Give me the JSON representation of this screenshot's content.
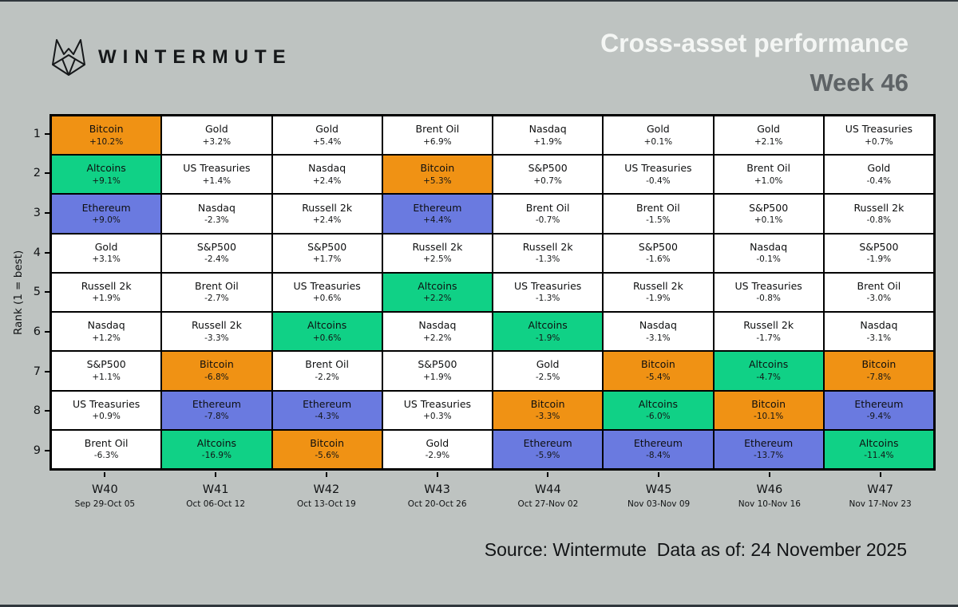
{
  "header": {
    "brand": "WINTERMUTE",
    "title": "Cross-asset performance",
    "subtitle": "Week 46"
  },
  "footer": {
    "text": "Source: Wintermute  Data as of: 24 November 2025"
  },
  "chart_data": {
    "type": "heatmap",
    "title": "Cross-asset performance Week 46",
    "ylabel": "Rank (1 = best)",
    "xlabel": "",
    "legend_position": "none",
    "grid": true,
    "ranks": [
      "1",
      "2",
      "3",
      "4",
      "5",
      "6",
      "7",
      "8",
      "9"
    ],
    "asset_colors": {
      "Bitcoin": "#F09214",
      "Altcoins": "#10D186",
      "Ethereum": "#6A7AE0",
      "default": "#FFFFFF"
    },
    "weeks": [
      {
        "label": "W40",
        "dates": "Sep 29-Oct 05",
        "ranking": [
          {
            "asset": "Bitcoin",
            "change": "+10.2%"
          },
          {
            "asset": "Altcoins",
            "change": "+9.1%"
          },
          {
            "asset": "Ethereum",
            "change": "+9.0%"
          },
          {
            "asset": "Gold",
            "change": "+3.1%"
          },
          {
            "asset": "Russell 2k",
            "change": "+1.9%"
          },
          {
            "asset": "Nasdaq",
            "change": "+1.2%"
          },
          {
            "asset": "S&P500",
            "change": "+1.1%"
          },
          {
            "asset": "US Treasuries",
            "change": "+0.9%"
          },
          {
            "asset": "Brent Oil",
            "change": "-6.3%"
          }
        ]
      },
      {
        "label": "W41",
        "dates": "Oct 06-Oct 12",
        "ranking": [
          {
            "asset": "Gold",
            "change": "+3.2%"
          },
          {
            "asset": "US Treasuries",
            "change": "+1.4%"
          },
          {
            "asset": "Nasdaq",
            "change": "-2.3%"
          },
          {
            "asset": "S&P500",
            "change": "-2.4%"
          },
          {
            "asset": "Brent Oil",
            "change": "-2.7%"
          },
          {
            "asset": "Russell 2k",
            "change": "-3.3%"
          },
          {
            "asset": "Bitcoin",
            "change": "-6.8%"
          },
          {
            "asset": "Ethereum",
            "change": "-7.8%"
          },
          {
            "asset": "Altcoins",
            "change": "-16.9%"
          }
        ]
      },
      {
        "label": "W42",
        "dates": "Oct 13-Oct 19",
        "ranking": [
          {
            "asset": "Gold",
            "change": "+5.4%"
          },
          {
            "asset": "Nasdaq",
            "change": "+2.4%"
          },
          {
            "asset": "Russell 2k",
            "change": "+2.4%"
          },
          {
            "asset": "S&P500",
            "change": "+1.7%"
          },
          {
            "asset": "US Treasuries",
            "change": "+0.6%"
          },
          {
            "asset": "Altcoins",
            "change": "+0.6%"
          },
          {
            "asset": "Brent Oil",
            "change": "-2.2%"
          },
          {
            "asset": "Ethereum",
            "change": "-4.3%"
          },
          {
            "asset": "Bitcoin",
            "change": "-5.6%"
          }
        ]
      },
      {
        "label": "W43",
        "dates": "Oct 20-Oct 26",
        "ranking": [
          {
            "asset": "Brent Oil",
            "change": "+6.9%"
          },
          {
            "asset": "Bitcoin",
            "change": "+5.3%"
          },
          {
            "asset": "Ethereum",
            "change": "+4.4%"
          },
          {
            "asset": "Russell 2k",
            "change": "+2.5%"
          },
          {
            "asset": "Altcoins",
            "change": "+2.2%"
          },
          {
            "asset": "Nasdaq",
            "change": "+2.2%"
          },
          {
            "asset": "S&P500",
            "change": "+1.9%"
          },
          {
            "asset": "US Treasuries",
            "change": "+0.3%"
          },
          {
            "asset": "Gold",
            "change": "-2.9%"
          }
        ]
      },
      {
        "label": "W44",
        "dates": "Oct 27-Nov 02",
        "ranking": [
          {
            "asset": "Nasdaq",
            "change": "+1.9%"
          },
          {
            "asset": "S&P500",
            "change": "+0.7%"
          },
          {
            "asset": "Brent Oil",
            "change": "-0.7%"
          },
          {
            "asset": "Russell 2k",
            "change": "-1.3%"
          },
          {
            "asset": "US Treasuries",
            "change": "-1.3%"
          },
          {
            "asset": "Altcoins",
            "change": "-1.9%"
          },
          {
            "asset": "Gold",
            "change": "-2.5%"
          },
          {
            "asset": "Bitcoin",
            "change": "-3.3%"
          },
          {
            "asset": "Ethereum",
            "change": "-5.9%"
          }
        ]
      },
      {
        "label": "W45",
        "dates": "Nov 03-Nov 09",
        "ranking": [
          {
            "asset": "Gold",
            "change": "+0.1%"
          },
          {
            "asset": "US Treasuries",
            "change": "-0.4%"
          },
          {
            "asset": "Brent Oil",
            "change": "-1.5%"
          },
          {
            "asset": "S&P500",
            "change": "-1.6%"
          },
          {
            "asset": "Russell 2k",
            "change": "-1.9%"
          },
          {
            "asset": "Nasdaq",
            "change": "-3.1%"
          },
          {
            "asset": "Bitcoin",
            "change": "-5.4%"
          },
          {
            "asset": "Altcoins",
            "change": "-6.0%"
          },
          {
            "asset": "Ethereum",
            "change": "-8.4%"
          }
        ]
      },
      {
        "label": "W46",
        "dates": "Nov 10-Nov 16",
        "ranking": [
          {
            "asset": "Gold",
            "change": "+2.1%"
          },
          {
            "asset": "Brent Oil",
            "change": "+1.0%"
          },
          {
            "asset": "S&P500",
            "change": "+0.1%"
          },
          {
            "asset": "Nasdaq",
            "change": "-0.1%"
          },
          {
            "asset": "US Treasuries",
            "change": "-0.8%"
          },
          {
            "asset": "Russell 2k",
            "change": "-1.7%"
          },
          {
            "asset": "Altcoins",
            "change": "-4.7%"
          },
          {
            "asset": "Bitcoin",
            "change": "-10.1%"
          },
          {
            "asset": "Ethereum",
            "change": "-13.7%"
          }
        ]
      },
      {
        "label": "W47",
        "dates": "Nov 17-Nov 23",
        "ranking": [
          {
            "asset": "US Treasuries",
            "change": "+0.7%"
          },
          {
            "asset": "Gold",
            "change": "-0.4%"
          },
          {
            "asset": "Russell 2k",
            "change": "-0.8%"
          },
          {
            "asset": "S&P500",
            "change": "-1.9%"
          },
          {
            "asset": "Brent Oil",
            "change": "-3.0%"
          },
          {
            "asset": "Nasdaq",
            "change": "-3.1%"
          },
          {
            "asset": "Bitcoin",
            "change": "-7.8%"
          },
          {
            "asset": "Ethereum",
            "change": "-9.4%"
          },
          {
            "asset": "Altcoins",
            "change": "-11.4%"
          }
        ]
      }
    ]
  }
}
